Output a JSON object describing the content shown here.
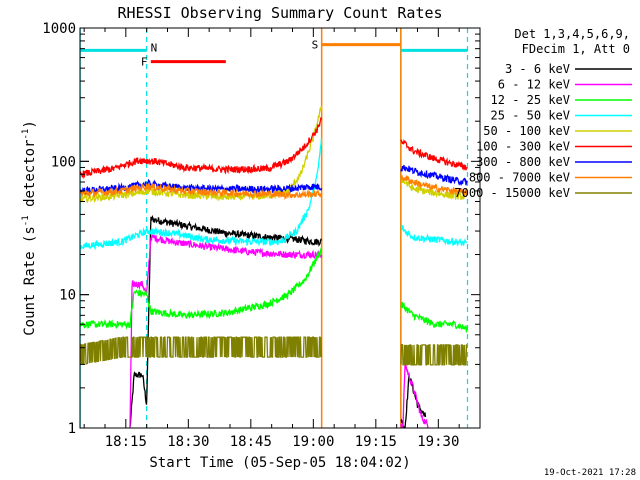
{
  "chart_data": {
    "type": "line",
    "title": "RHESSI Observing Summary Count Rates",
    "xlabel": "Start Time (05-Sep-05 18:04:02)",
    "ylabel_main": "Count Rate (s",
    "ylabel_sup1": "-1",
    "ylabel_mid": " detector",
    "ylabel_sup2": "-1",
    "ylabel_end": ")",
    "yscale": "log",
    "ylim": [
      1,
      1000
    ],
    "xlim_minutes": [
      0,
      96
    ],
    "x_tick_values": [
      11,
      26,
      41,
      56,
      71,
      86
    ],
    "x_tick_labels": [
      "18:15",
      "18:30",
      "18:45",
      "19:00",
      "19:15",
      "19:30"
    ],
    "y_tick_values": [
      1,
      10,
      100,
      1000
    ],
    "y_tick_labels": [
      "1",
      "10",
      "100",
      "1000"
    ],
    "legend_header": [
      "Det 1,3,4,5,6,9,",
      "FDecim 1, Att 0"
    ],
    "footer_date": "19-Oct-2021 17:28",
    "annotations": [
      {
        "label": "N",
        "color": "#00b0ff",
        "x": [
          16,
          23
        ],
        "y": 680
      },
      {
        "label": "F",
        "color": "#ff0000",
        "x": [
          17,
          35
        ],
        "y": 560
      },
      {
        "label": "S",
        "color": "#ff8000",
        "x": [
          58,
          77
        ],
        "y": 750
      }
    ],
    "night_bars": {
      "color": "#00e0e0",
      "y": 680,
      "intervals": [
        [
          0,
          16
        ],
        [
          77,
          93
        ]
      ]
    },
    "night_lines": {
      "solid": [
        0,
        77
      ],
      "dashed": [
        16,
        93
      ]
    },
    "saa_lines": {
      "color": "#ff8000",
      "x": [
        58,
        77
      ]
    },
    "gaps": [
      [
        58,
        77
      ]
    ],
    "series": [
      {
        "name": "3 - 6 keV",
        "color": "#000000",
        "points": [
          [
            12,
            1
          ],
          [
            13,
            2.5
          ],
          [
            15,
            2.5
          ],
          [
            16,
            1.5
          ],
          [
            17,
            37
          ],
          [
            25,
            33
          ],
          [
            35,
            29
          ],
          [
            45,
            27
          ],
          [
            52,
            26
          ],
          [
            56,
            25
          ],
          [
            58,
            25
          ],
          [
            78,
            1
          ],
          [
            79,
            2.5
          ],
          [
            81,
            1.5
          ],
          [
            83,
            1.2
          ]
        ]
      },
      {
        "name": "6 - 12 keV",
        "color": "#ff00ff",
        "points": [
          [
            12,
            1
          ],
          [
            12.5,
            12
          ],
          [
            15,
            12
          ],
          [
            16,
            10
          ],
          [
            17,
            27
          ],
          [
            22,
            25
          ],
          [
            30,
            23
          ],
          [
            40,
            21
          ],
          [
            50,
            20
          ],
          [
            56,
            20
          ],
          [
            58,
            20
          ],
          [
            77.5,
            1
          ],
          [
            78,
            3
          ],
          [
            80,
            2
          ],
          [
            82,
            1.2
          ],
          [
            84,
            1
          ]
        ]
      },
      {
        "name": "12 - 25 keV",
        "color": "#00ff00",
        "points": [
          [
            0,
            6
          ],
          [
            12,
            6
          ],
          [
            13,
            10.5
          ],
          [
            16,
            10
          ],
          [
            17,
            7.5
          ],
          [
            25,
            7
          ],
          [
            35,
            7.3
          ],
          [
            45,
            8.5
          ],
          [
            50,
            10
          ],
          [
            54,
            13
          ],
          [
            56,
            17
          ],
          [
            58,
            22
          ],
          [
            78,
            8
          ],
          [
            80,
            7
          ],
          [
            85,
            6
          ],
          [
            90,
            6
          ],
          [
            93,
            5.5
          ]
        ]
      },
      {
        "name": "25 - 50 keV",
        "color": "#00ffff",
        "points": [
          [
            0,
            23
          ],
          [
            10,
            25
          ],
          [
            16,
            30
          ],
          [
            22,
            29
          ],
          [
            30,
            26
          ],
          [
            40,
            25
          ],
          [
            48,
            25
          ],
          [
            52,
            30
          ],
          [
            55,
            45
          ],
          [
            57,
            80
          ],
          [
            58,
            150
          ],
          [
            78,
            30
          ],
          [
            80,
            27
          ],
          [
            85,
            26
          ],
          [
            90,
            25
          ],
          [
            93,
            24
          ]
        ]
      },
      {
        "name": "50 - 100 keV",
        "color": "#d0d000",
        "points": [
          [
            0,
            52
          ],
          [
            8,
            55
          ],
          [
            14,
            58
          ],
          [
            16,
            60
          ],
          [
            25,
            56
          ],
          [
            35,
            54
          ],
          [
            45,
            55
          ],
          [
            50,
            60
          ],
          [
            53,
            80
          ],
          [
            56,
            150
          ],
          [
            58,
            260
          ],
          [
            78,
            70
          ],
          [
            80,
            62
          ],
          [
            85,
            58
          ],
          [
            90,
            55
          ],
          [
            93,
            54
          ]
        ]
      },
      {
        "name": "100 - 300 keV",
        "color": "#ff0000",
        "points": [
          [
            0,
            80
          ],
          [
            8,
            88
          ],
          [
            14,
            102
          ],
          [
            18,
            100
          ],
          [
            25,
            90
          ],
          [
            35,
            87
          ],
          [
            45,
            88
          ],
          [
            50,
            100
          ],
          [
            54,
            130
          ],
          [
            57,
            175
          ],
          [
            58,
            215
          ],
          [
            78,
            135
          ],
          [
            80,
            120
          ],
          [
            85,
            105
          ],
          [
            90,
            95
          ],
          [
            93,
            90
          ]
        ]
      },
      {
        "name": "300 - 800 keV",
        "color": "#0000ff",
        "points": [
          [
            0,
            60
          ],
          [
            10,
            63
          ],
          [
            16,
            68
          ],
          [
            25,
            63
          ],
          [
            35,
            62
          ],
          [
            45,
            62
          ],
          [
            52,
            63
          ],
          [
            56,
            65
          ],
          [
            58,
            64
          ],
          [
            78,
            90
          ],
          [
            80,
            85
          ],
          [
            85,
            78
          ],
          [
            90,
            72
          ],
          [
            93,
            70
          ]
        ]
      },
      {
        "name": "800 - 7000 keV",
        "color": "#ff8000",
        "points": [
          [
            0,
            57
          ],
          [
            10,
            60
          ],
          [
            16,
            65
          ],
          [
            25,
            60
          ],
          [
            35,
            58
          ],
          [
            45,
            57
          ],
          [
            52,
            56
          ],
          [
            56,
            57
          ],
          [
            58,
            57
          ],
          [
            78,
            75
          ],
          [
            80,
            70
          ],
          [
            85,
            63
          ],
          [
            90,
            60
          ],
          [
            93,
            58
          ]
        ]
      },
      {
        "name": "7000 - 15000 keV",
        "color": "#808000",
        "points": [
          [
            0,
            3.5
          ],
          [
            10,
            4
          ],
          [
            16,
            4
          ],
          [
            25,
            4
          ],
          [
            35,
            4
          ],
          [
            45,
            4
          ],
          [
            56,
            4
          ],
          [
            58,
            4
          ],
          [
            78,
            3.5
          ],
          [
            80,
            3.5
          ],
          [
            85,
            3.5
          ],
          [
            90,
            3.5
          ],
          [
            93,
            3.5
          ]
        ]
      }
    ]
  }
}
